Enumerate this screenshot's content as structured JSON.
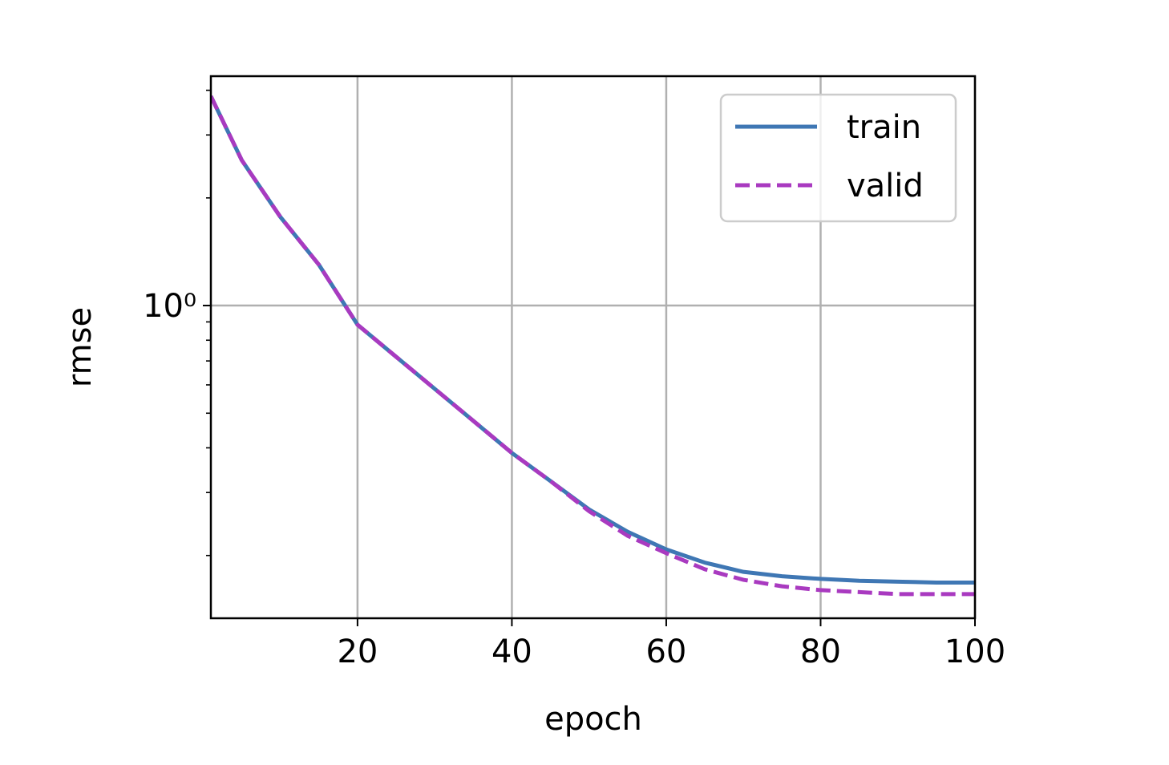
{
  "chart_data": {
    "type": "line",
    "xlabel": "epoch",
    "ylabel": "rmse",
    "x": [
      1,
      5,
      10,
      15,
      20,
      25,
      30,
      35,
      40,
      45,
      50,
      55,
      60,
      65,
      70,
      75,
      80,
      85,
      90,
      95,
      100
    ],
    "series": [
      {
        "name": "train",
        "color": "#3f77b4",
        "linestyle": "solid",
        "values": [
          3.85,
          2.55,
          1.77,
          1.3,
          0.884,
          0.719,
          0.585,
          0.476,
          0.387,
          0.323,
          0.269,
          0.233,
          0.208,
          0.191,
          0.18,
          0.175,
          0.172,
          0.17,
          0.169,
          0.168,
          0.168
        ]
      },
      {
        "name": "valid",
        "color": "#a93ac0",
        "linestyle": "dashed",
        "values": [
          3.85,
          2.55,
          1.77,
          1.3,
          0.884,
          0.719,
          0.585,
          0.476,
          0.387,
          0.323,
          0.266,
          0.227,
          0.203,
          0.183,
          0.171,
          0.164,
          0.16,
          0.158,
          0.156,
          0.156,
          0.156
        ]
      }
    ],
    "xlim": [
      1,
      100
    ],
    "xticks": [
      20,
      40,
      60,
      80,
      100
    ],
    "ylim": [
      0.1335,
      4.38
    ],
    "ylog": true,
    "yticks": [
      {
        "value": 1,
        "label": "10⁰"
      }
    ],
    "yminorticks": [
      0.2,
      0.3,
      0.4,
      0.5,
      0.6,
      0.7,
      0.8,
      0.9,
      2,
      3,
      4
    ],
    "grid": true,
    "legend": "upper right"
  }
}
